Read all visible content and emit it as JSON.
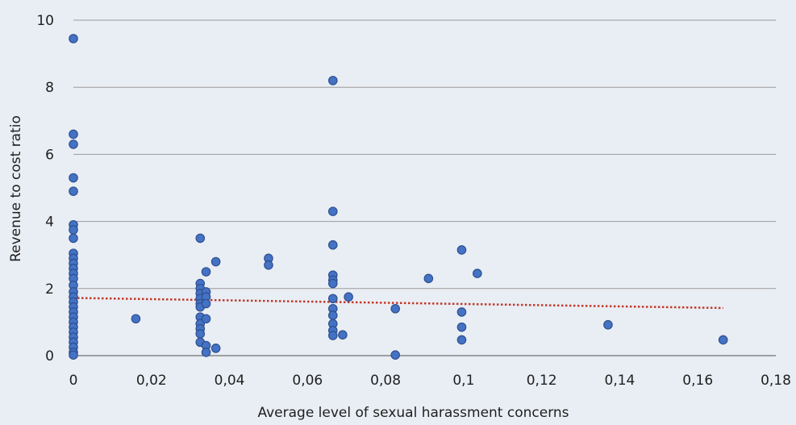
{
  "chart_data": {
    "type": "scatter",
    "title": "",
    "xlabel": "Average level of sexual harassment concerns",
    "ylabel": "Revenue to cost ratio",
    "xlim": [
      0,
      0.18
    ],
    "ylim": [
      0,
      10
    ],
    "x_ticks": [
      "0",
      "0,02",
      "0,04",
      "0,06",
      "0,08",
      "0,1",
      "0,12",
      "0,14",
      "0,16",
      "0,18"
    ],
    "y_ticks": [
      "0",
      "2",
      "4",
      "6",
      "8",
      "10"
    ],
    "grid": "horizontal",
    "legend": "none",
    "marker_color": "#4472c4",
    "marker_edge_color": "#2f4f8f",
    "trendline": {
      "style": "dotted",
      "color": "#c0392b",
      "x": [
        0,
        0.1665
      ],
      "y": [
        1.72,
        1.42
      ]
    },
    "points": [
      {
        "x": 0,
        "y": 9.45
      },
      {
        "x": 0,
        "y": 6.6
      },
      {
        "x": 0,
        "y": 6.3
      },
      {
        "x": 0,
        "y": 5.3
      },
      {
        "x": 0,
        "y": 4.9
      },
      {
        "x": 0,
        "y": 3.9
      },
      {
        "x": 0,
        "y": 3.75
      },
      {
        "x": 0,
        "y": 3.5
      },
      {
        "x": 0,
        "y": 3.05
      },
      {
        "x": 0,
        "y": 2.9
      },
      {
        "x": 0,
        "y": 2.75
      },
      {
        "x": 0,
        "y": 2.6
      },
      {
        "x": 0,
        "y": 2.45
      },
      {
        "x": 0,
        "y": 2.3
      },
      {
        "x": 0,
        "y": 2.1
      },
      {
        "x": 0,
        "y": 1.9
      },
      {
        "x": 0,
        "y": 1.75
      },
      {
        "x": 0,
        "y": 1.6
      },
      {
        "x": 0,
        "y": 1.45
      },
      {
        "x": 0,
        "y": 1.3
      },
      {
        "x": 0,
        "y": 1.15
      },
      {
        "x": 0,
        "y": 1.0
      },
      {
        "x": 0,
        "y": 0.85
      },
      {
        "x": 0,
        "y": 0.7
      },
      {
        "x": 0,
        "y": 0.55
      },
      {
        "x": 0,
        "y": 0.4
      },
      {
        "x": 0,
        "y": 0.25
      },
      {
        "x": 0,
        "y": 0.1
      },
      {
        "x": 0,
        "y": 0.02
      },
      {
        "x": 0.016,
        "y": 1.1
      },
      {
        "x": 0.0325,
        "y": 3.5
      },
      {
        "x": 0.0325,
        "y": 2.15
      },
      {
        "x": 0.0325,
        "y": 2.0
      },
      {
        "x": 0.0325,
        "y": 1.85
      },
      {
        "x": 0.0325,
        "y": 1.7
      },
      {
        "x": 0.0325,
        "y": 1.55
      },
      {
        "x": 0.0325,
        "y": 1.45
      },
      {
        "x": 0.0325,
        "y": 1.15
      },
      {
        "x": 0.0325,
        "y": 0.95
      },
      {
        "x": 0.0325,
        "y": 0.8
      },
      {
        "x": 0.0325,
        "y": 0.65
      },
      {
        "x": 0.0325,
        "y": 0.4
      },
      {
        "x": 0.034,
        "y": 2.5
      },
      {
        "x": 0.034,
        "y": 1.9
      },
      {
        "x": 0.034,
        "y": 1.75
      },
      {
        "x": 0.034,
        "y": 1.55
      },
      {
        "x": 0.034,
        "y": 1.1
      },
      {
        "x": 0.034,
        "y": 0.3
      },
      {
        "x": 0.034,
        "y": 0.1
      },
      {
        "x": 0.0365,
        "y": 2.8
      },
      {
        "x": 0.0365,
        "y": 0.22
      },
      {
        "x": 0.05,
        "y": 2.9
      },
      {
        "x": 0.05,
        "y": 2.7
      },
      {
        "x": 0.0665,
        "y": 8.2
      },
      {
        "x": 0.0665,
        "y": 4.3
      },
      {
        "x": 0.0665,
        "y": 3.3
      },
      {
        "x": 0.0665,
        "y": 2.4
      },
      {
        "x": 0.0665,
        "y": 2.25
      },
      {
        "x": 0.0665,
        "y": 2.15
      },
      {
        "x": 0.0665,
        "y": 1.7
      },
      {
        "x": 0.0665,
        "y": 1.4
      },
      {
        "x": 0.0665,
        "y": 1.2
      },
      {
        "x": 0.0665,
        "y": 0.95
      },
      {
        "x": 0.0665,
        "y": 0.75
      },
      {
        "x": 0.0665,
        "y": 0.6
      },
      {
        "x": 0.069,
        "y": 0.62
      },
      {
        "x": 0.0705,
        "y": 1.75
      },
      {
        "x": 0.0825,
        "y": 1.4
      },
      {
        "x": 0.0825,
        "y": 0.02
      },
      {
        "x": 0.091,
        "y": 2.3
      },
      {
        "x": 0.0995,
        "y": 3.15
      },
      {
        "x": 0.0995,
        "y": 1.3
      },
      {
        "x": 0.0995,
        "y": 0.85
      },
      {
        "x": 0.0995,
        "y": 0.47
      },
      {
        "x": 0.1035,
        "y": 2.45
      },
      {
        "x": 0.137,
        "y": 0.92
      },
      {
        "x": 0.1665,
        "y": 0.47
      }
    ]
  }
}
